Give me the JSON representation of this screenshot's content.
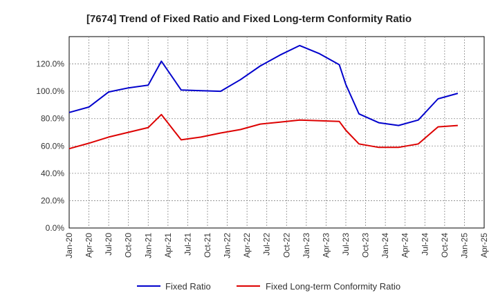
{
  "chart_data": {
    "type": "line",
    "title": "[7674]  Trend of Fixed Ratio and Fixed Long-term Conformity Ratio",
    "xlabel": "",
    "ylabel": "",
    "x_ticks": [
      "Jan-20",
      "Apr-20",
      "Jul-20",
      "Oct-20",
      "Jan-21",
      "Apr-21",
      "Jul-21",
      "Oct-21",
      "Jan-22",
      "Apr-22",
      "Jul-22",
      "Oct-22",
      "Jan-23",
      "Apr-23",
      "Jul-23",
      "Oct-23",
      "Jan-24",
      "Apr-24",
      "Jul-24",
      "Oct-24",
      "Jan-25",
      "Apr-25"
    ],
    "y_ticks": [
      "0.0%",
      "20.0%",
      "40.0%",
      "60.0%",
      "80.0%",
      "100.0%",
      "120.0%"
    ],
    "ylim": [
      0,
      140
    ],
    "grid": true,
    "legend_position": "bottom",
    "x": [
      "2020-01",
      "2020-04",
      "2020-07",
      "2020-10",
      "2021-01",
      "2021-03",
      "2021-06",
      "2021-09",
      "2021-12",
      "2022-03",
      "2022-06",
      "2022-09",
      "2022-12",
      "2023-03",
      "2023-06",
      "2023-07",
      "2023-09",
      "2023-12",
      "2024-03",
      "2024-06",
      "2024-09",
      "2024-12"
    ],
    "series": [
      {
        "name": "Fixed Ratio",
        "color": "#0000cc",
        "values": [
          84.5,
          88.5,
          99.5,
          102.5,
          104.5,
          122.0,
          101.0,
          100.5,
          100.0,
          108.5,
          118.5,
          126.5,
          133.5,
          127.5,
          119.5,
          105.0,
          83.5,
          77.0,
          75.0,
          79.0,
          94.5,
          98.5
        ]
      },
      {
        "name": "Fixed Long-term Conformity Ratio",
        "color": "#dd0000",
        "values": [
          58.0,
          62.0,
          66.5,
          70.0,
          73.5,
          83.0,
          64.5,
          66.5,
          69.5,
          72.0,
          76.0,
          77.5,
          79.0,
          78.5,
          78.0,
          71.5,
          61.5,
          59.0,
          59.0,
          61.5,
          74.0,
          75.0
        ]
      }
    ]
  }
}
